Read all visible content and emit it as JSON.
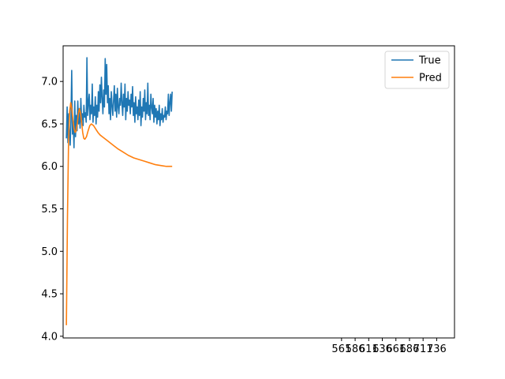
{
  "chart_data": {
    "type": "line",
    "title": "",
    "xlabel": "",
    "ylabel": "",
    "ylim": [
      3.98,
      7.42
    ],
    "yticks": [
      4.0,
      4.5,
      5.0,
      5.5,
      6.0,
      6.5,
      7.0
    ],
    "ytick_labels": [
      "4.0",
      "4.5",
      "5.0",
      "5.5",
      "6.0",
      "6.5",
      "7.0"
    ],
    "xlim": [
      0,
      3600
    ],
    "xticks": [
      2561,
      2686,
      2811,
      2936,
      3061,
      3186,
      3311,
      3436
    ],
    "xtick_labels": [
      "561",
      "586",
      "611",
      "636",
      "661",
      "686",
      "711",
      "736"
    ],
    "grid": false,
    "legend_position": "top-right",
    "series": [
      {
        "name": "True",
        "color": "#1f77b4",
        "x": [
          30,
          37,
          44,
          51,
          58,
          65,
          72,
          79,
          86,
          93,
          100,
          107,
          114,
          121,
          128,
          135,
          142,
          149,
          156,
          163,
          170,
          177,
          184,
          191,
          198,
          205,
          212,
          219,
          226,
          233,
          240,
          247,
          254,
          261,
          268,
          275,
          282,
          289,
          296,
          303,
          310,
          317,
          324,
          331,
          338,
          345,
          352,
          359,
          366,
          373,
          380,
          387,
          394,
          401,
          408,
          415,
          422,
          429,
          436,
          443,
          450,
          457,
          464,
          471,
          478,
          485,
          492,
          499,
          506,
          513,
          520,
          527,
          534,
          541,
          548,
          555,
          562,
          569,
          576,
          583,
          590,
          597,
          604,
          611,
          618,
          625,
          632,
          639,
          646,
          653,
          660,
          667,
          674,
          681,
          688,
          695,
          702,
          709,
          716,
          723,
          730,
          737,
          744,
          751,
          758,
          765,
          772,
          779,
          786,
          793,
          800,
          807,
          814,
          821,
          828,
          835,
          842,
          849,
          856,
          863,
          870,
          877,
          884,
          891,
          898,
          905,
          912,
          919,
          926,
          933,
          940,
          947,
          954,
          961,
          968,
          975,
          982,
          989,
          996,
          1003
        ],
        "values": [
          6.33,
          6.7,
          6.28,
          6.62,
          6.4,
          6.25,
          6.55,
          7.13,
          6.38,
          6.52,
          6.22,
          6.77,
          6.35,
          6.6,
          6.42,
          6.77,
          6.5,
          6.68,
          6.45,
          6.8,
          6.55,
          6.62,
          6.48,
          6.72,
          6.58,
          6.63,
          6.52,
          7.28,
          6.6,
          6.75,
          6.85,
          6.55,
          6.72,
          6.62,
          6.97,
          6.52,
          6.7,
          6.6,
          6.82,
          6.5,
          6.72,
          6.58,
          6.88,
          6.65,
          6.96,
          6.75,
          7.05,
          6.8,
          6.62,
          6.9,
          6.7,
          7.27,
          6.85,
          7.2,
          6.75,
          6.95,
          6.62,
          6.8,
          6.55,
          6.88,
          6.72,
          6.6,
          6.78,
          6.95,
          6.65,
          6.85,
          6.58,
          6.92,
          6.7,
          6.62,
          6.8,
          6.72,
          6.98,
          6.75,
          6.6,
          6.85,
          6.7,
          6.97,
          6.55,
          6.8,
          6.65,
          6.88,
          6.72,
          6.78,
          6.62,
          6.85,
          6.7,
          6.94,
          6.6,
          6.75,
          6.52,
          6.82,
          6.62,
          6.7,
          6.55,
          6.78,
          6.6,
          6.88,
          6.48,
          6.7,
          6.58,
          6.8,
          6.65,
          6.9,
          6.55,
          6.75,
          6.62,
          6.98,
          6.6,
          6.72,
          6.55,
          6.85,
          6.7,
          6.62,
          6.8,
          6.52,
          6.72,
          6.58,
          6.68,
          6.5,
          6.65,
          6.55,
          6.72,
          6.48,
          6.62,
          6.55,
          6.68,
          6.52,
          6.6,
          6.58,
          6.7,
          6.55,
          6.65,
          6.62,
          6.85,
          6.6,
          6.75,
          6.85,
          6.65,
          6.88
        ]
      },
      {
        "name": "Pred",
        "color": "#ff7f0e",
        "x": [
          30,
          40,
          50,
          60,
          70,
          80,
          90,
          100,
          110,
          120,
          130,
          140,
          150,
          160,
          170,
          180,
          190,
          200,
          215,
          230,
          245,
          260,
          280,
          300,
          320,
          340,
          360,
          380,
          400,
          430,
          460,
          500,
          550,
          600,
          650,
          700,
          750,
          800,
          850,
          900,
          950,
          1003
        ],
        "values": [
          4.13,
          5.4,
          6.3,
          6.65,
          6.75,
          6.68,
          6.55,
          6.45,
          6.4,
          6.42,
          6.5,
          6.62,
          6.68,
          6.63,
          6.52,
          6.4,
          6.33,
          6.32,
          6.35,
          6.42,
          6.48,
          6.5,
          6.48,
          6.44,
          6.4,
          6.37,
          6.35,
          6.33,
          6.31,
          6.28,
          6.25,
          6.21,
          6.17,
          6.13,
          6.1,
          6.08,
          6.06,
          6.04,
          6.02,
          6.01,
          6.0,
          6.0
        ]
      }
    ]
  }
}
